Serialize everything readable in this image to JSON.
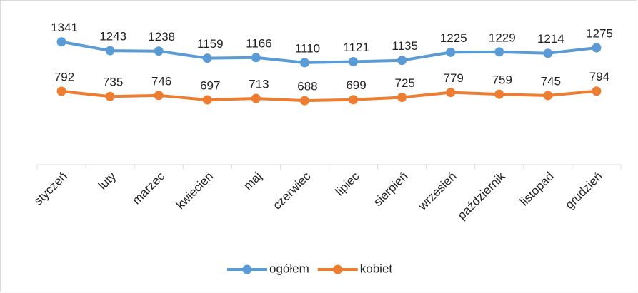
{
  "chart_data": {
    "type": "line",
    "categories": [
      "styczeń",
      "luty",
      "marzec",
      "kwiecień",
      "maj",
      "czerwiec",
      "lipiec",
      "sierpień",
      "wrzesień",
      "październik",
      "listopad",
      "grudzień"
    ],
    "series": [
      {
        "name": "ogółem",
        "color": "#5b9bd5",
        "values": [
          1341,
          1243,
          1238,
          1159,
          1166,
          1110,
          1121,
          1135,
          1225,
          1229,
          1214,
          1275
        ]
      },
      {
        "name": "kobiet",
        "color": "#ed7d31",
        "values": [
          792,
          735,
          746,
          697,
          713,
          688,
          699,
          725,
          779,
          759,
          745,
          794
        ]
      }
    ],
    "ylim": [
      0,
      1600
    ],
    "legend": "bottom"
  }
}
